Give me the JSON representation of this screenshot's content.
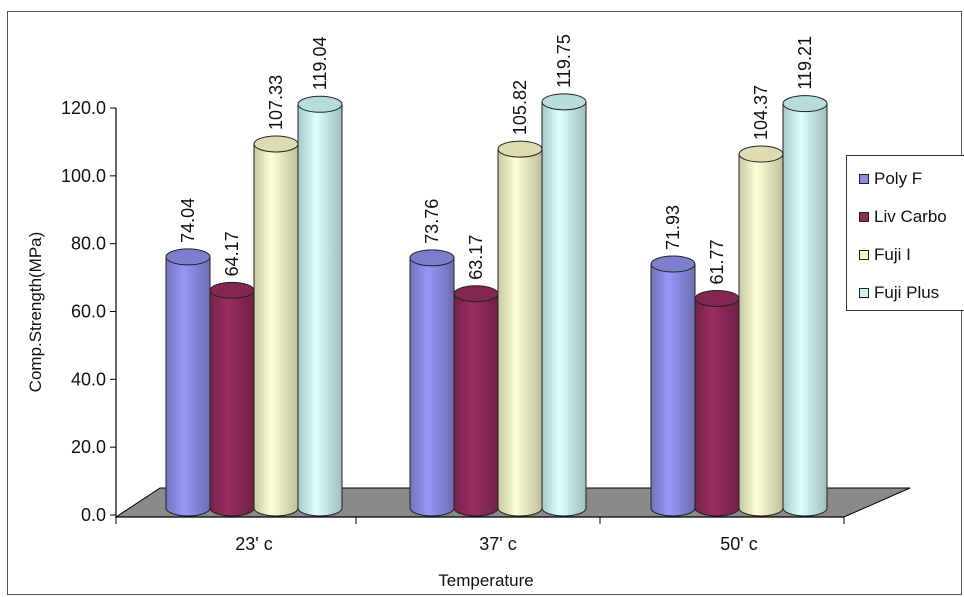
{
  "chart_data": {
    "type": "bar",
    "style": "3d-cylinder",
    "categories": [
      "23' c",
      "37' c",
      "50' c"
    ],
    "series": [
      {
        "name": "Poly F",
        "values": [
          74.04,
          73.76,
          71.93
        ],
        "labels": [
          "74.04",
          "73.76",
          "71.93"
        ],
        "color": "#8c8ce6"
      },
      {
        "name": "Liv Carbo",
        "values": [
          64.17,
          63.17,
          61.77
        ],
        "labels": [
          "64.17",
          "63.17",
          "61.77"
        ],
        "color": "#8e2a5a"
      },
      {
        "name": "Fuji I",
        "values": [
          107.33,
          105.82,
          104.37
        ],
        "labels": [
          "107.33",
          "105.82",
          "104.37"
        ],
        "color": "#f4f4c4"
      },
      {
        "name": "Fuji Plus",
        "values": [
          119.04,
          119.75,
          119.21
        ],
        "labels": [
          "119.04",
          "119.75",
          "119.21"
        ],
        "color": "#ccf4f4"
      }
    ],
    "xlabel": "Temperature",
    "ylabel": "Comp.Strength(MPa)",
    "ylim": [
      0,
      120
    ],
    "yticks": [
      "0.0",
      "20.0",
      "40.0",
      "60.0",
      "80.0",
      "100.0",
      "120.0"
    ],
    "floor_color": "#8a8a8a",
    "legend_position": "right"
  }
}
